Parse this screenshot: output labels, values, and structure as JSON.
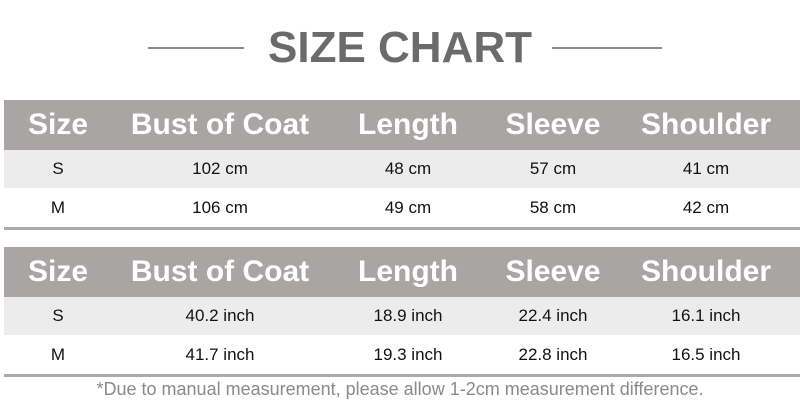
{
  "title": "SIZE CHART",
  "headers": [
    "Size",
    "Bust of Coat",
    "Length",
    "Sleeve",
    "Shoulder"
  ],
  "cm_rows": [
    [
      "S",
      "102 cm",
      "48 cm",
      "57 cm",
      "41 cm"
    ],
    [
      "M",
      "106 cm",
      "49 cm",
      "58 cm",
      "42 cm"
    ]
  ],
  "inch_rows": [
    [
      "S",
      "40.2 inch",
      "18.9 inch",
      "22.4 inch",
      "16.1 inch"
    ],
    [
      "M",
      "41.7 inch",
      "19.3 inch",
      "22.8 inch",
      "16.5 inch"
    ]
  ],
  "note": "*Due to manual measurement, please allow 1-2cm measurement difference.",
  "colors": {
    "header_bg": "#a9a5a4",
    "stripe": "#ececec",
    "title": "#6b6b6b"
  }
}
